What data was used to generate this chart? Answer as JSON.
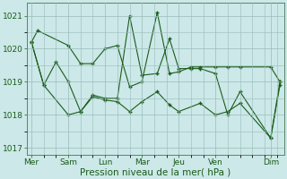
{
  "xlabel": "Pression niveau de la mer( hPa )",
  "background_color": "#cce8e8",
  "grid_color": "#99bbbb",
  "line_color": "#1a5c1a",
  "ylim": [
    1016.8,
    1021.4
  ],
  "yticks": [
    1017,
    1018,
    1019,
    1020,
    1021
  ],
  "day_labels": [
    "Mer",
    "Sam",
    "Lun",
    "Mar",
    "Jeu",
    "Ven",
    "Dim"
  ],
  "day_positions": [
    0,
    24,
    48,
    72,
    96,
    120,
    156
  ],
  "xlim": [
    -3,
    165
  ],
  "series1_x": [
    0,
    4,
    24,
    32,
    40,
    48,
    56,
    64,
    72,
    82,
    90,
    96,
    104,
    110,
    120,
    128,
    136,
    156,
    162
  ],
  "series1_y": [
    1020.2,
    1020.55,
    1020.1,
    1019.55,
    1019.55,
    1020.0,
    1020.1,
    1018.85,
    1019.0,
    1021.1,
    1019.25,
    1019.3,
    1019.45,
    1019.45,
    1019.45,
    1019.45,
    1019.45,
    1019.45,
    1019.0
  ],
  "series2_x": [
    0,
    8,
    24,
    32,
    40,
    48,
    56,
    64,
    72,
    82,
    90,
    96,
    110,
    120,
    128,
    136,
    156,
    162
  ],
  "series2_y": [
    1020.2,
    1018.9,
    1018.0,
    1018.1,
    1018.55,
    1018.45,
    1018.4,
    1018.1,
    1018.4,
    1018.7,
    1018.3,
    1018.1,
    1018.35,
    1018.0,
    1018.1,
    1018.35,
    1017.3,
    1018.9
  ],
  "series3_x": [
    0,
    8,
    16,
    24,
    32,
    40,
    48,
    56,
    64,
    72,
    82,
    90,
    96,
    104,
    110,
    120,
    128,
    136,
    156,
    162
  ],
  "series3_y": [
    1020.2,
    1018.9,
    1019.6,
    1019.0,
    1018.1,
    1018.6,
    1018.5,
    1018.5,
    1021.0,
    1019.2,
    1019.25,
    1020.3,
    1019.4,
    1019.4,
    1019.4,
    1019.25,
    1018.0,
    1018.7,
    1017.3,
    1019.0
  ],
  "xlabel_fontsize": 7.5,
  "tick_fontsize": 6.5
}
